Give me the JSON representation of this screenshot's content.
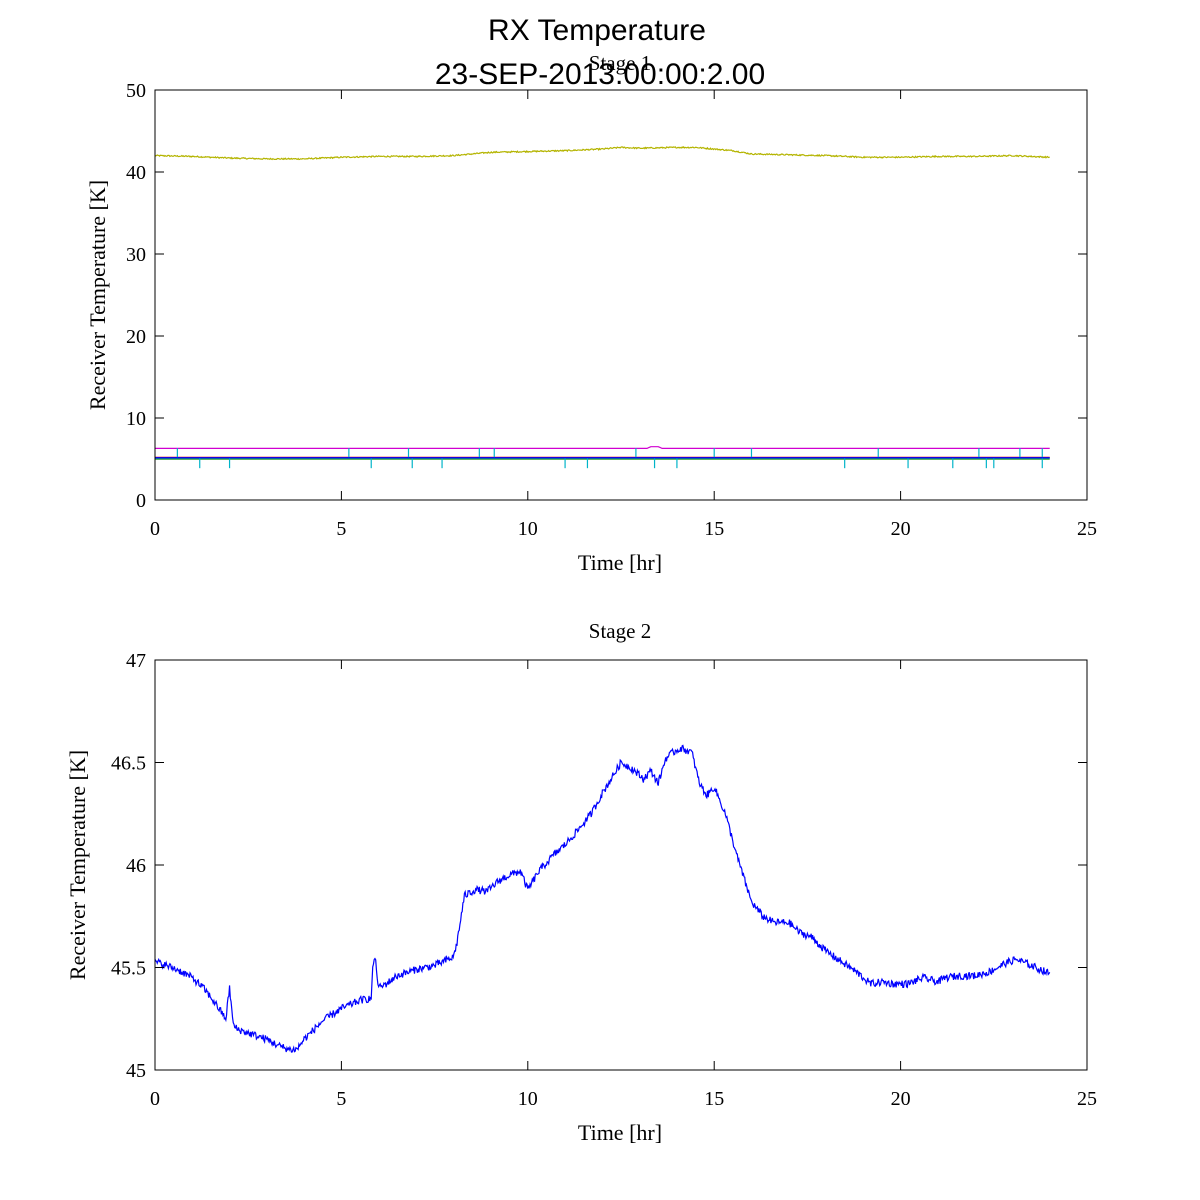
{
  "figure": {
    "title_line1": "RX Temperature",
    "title_line2": "23-SEP-2013.00:00:2.00"
  },
  "chart_data": [
    {
      "type": "line",
      "title": "Stage 1",
      "xlabel": "Time [hr]",
      "ylabel": "Receiver Temperature [K]",
      "xlim": [
        0,
        25
      ],
      "ylim": [
        0,
        50
      ],
      "xticks": [
        0,
        5,
        10,
        15,
        20,
        25
      ],
      "yticks": [
        0,
        10,
        20,
        30,
        40,
        50
      ],
      "series": [
        {
          "name": "yellow",
          "color": "#b4b400",
          "x": [
            0,
            1,
            2,
            3,
            4,
            5,
            6,
            7,
            8,
            9,
            10,
            11,
            12,
            12.5,
            13,
            14,
            14.5,
            15,
            15.5,
            16,
            17,
            18,
            19,
            20,
            21,
            22,
            23,
            24
          ],
          "y": [
            42.0,
            41.9,
            41.7,
            41.6,
            41.6,
            41.8,
            41.9,
            41.9,
            42.0,
            42.4,
            42.5,
            42.6,
            42.8,
            43.0,
            42.9,
            43.0,
            43.0,
            42.8,
            42.6,
            42.2,
            42.1,
            42.0,
            41.8,
            41.8,
            41.9,
            41.9,
            42.0,
            41.8
          ]
        },
        {
          "name": "magenta",
          "color": "#d000d0",
          "x": [
            0,
            13.2,
            13.3,
            13.5,
            13.6,
            24
          ],
          "y": [
            6.3,
            6.3,
            6.5,
            6.5,
            6.3,
            6.3
          ]
        },
        {
          "name": "red",
          "color": "#e00000",
          "x": [
            0,
            24
          ],
          "y": [
            5.2,
            5.2
          ]
        },
        {
          "name": "green",
          "color": "#008000",
          "x": [
            0,
            24
          ],
          "y": [
            5.0,
            5.0
          ]
        },
        {
          "name": "cyan",
          "color": "#00b4c8",
          "x": [
            0,
            24
          ],
          "y": [
            5.1,
            5.1
          ],
          "spikes_down": [
            1.2,
            2.0,
            5.8,
            6.9,
            7.7,
            11.0,
            11.6,
            13.4,
            14.0,
            18.5,
            20.2,
            21.4,
            22.3,
            22.5,
            23.8
          ],
          "spikes_up": [
            0.6,
            5.2,
            6.8,
            8.7,
            9.1,
            12.9,
            15.0,
            16.0,
            19.4,
            22.1,
            23.2,
            23.8
          ]
        },
        {
          "name": "blue",
          "color": "#0000ff",
          "x": [
            0,
            24
          ],
          "y": [
            5.15,
            5.15
          ]
        }
      ]
    },
    {
      "type": "line",
      "title": "Stage 2",
      "xlabel": "Time [hr]",
      "ylabel": "Receiver Temperature [K]",
      "xlim": [
        0,
        25
      ],
      "ylim": [
        45,
        47
      ],
      "xticks": [
        0,
        5,
        10,
        15,
        20,
        25
      ],
      "yticks": [
        45,
        45.5,
        46,
        46.5,
        47
      ],
      "ytick_labels": [
        "45",
        "45.5",
        "46",
        "46.5",
        "47"
      ],
      "series": [
        {
          "name": "blue",
          "color": "#0000ff",
          "x": [
            0,
            0.3,
            0.6,
            1.0,
            1.3,
            1.6,
            1.9,
            2.0,
            2.1,
            2.2,
            2.5,
            3.0,
            3.3,
            3.6,
            3.8,
            4.0,
            4.5,
            5.0,
            5.5,
            5.8,
            5.85,
            5.9,
            6.0,
            6.2,
            6.5,
            7.0,
            7.5,
            8.0,
            8.1,
            8.3,
            8.6,
            8.9,
            9.2,
            9.5,
            9.8,
            10.0,
            10.3,
            10.7,
            11.0,
            11.3,
            11.7,
            12.0,
            12.3,
            12.5,
            12.8,
            13.1,
            13.3,
            13.5,
            13.7,
            13.9,
            14.1,
            14.4,
            14.6,
            14.8,
            15.0,
            15.3,
            15.6,
            16.0,
            16.3,
            16.6,
            17.0,
            17.3,
            17.6,
            18.0,
            18.4,
            18.8,
            19.0,
            19.2,
            19.5,
            19.8,
            20.2,
            20.6,
            21.0,
            21.2,
            21.6,
            22.0,
            22.4,
            22.8,
            23.1,
            23.5,
            24.0
          ],
          "y": [
            45.53,
            45.51,
            45.49,
            45.45,
            45.4,
            45.33,
            45.25,
            45.4,
            45.22,
            45.2,
            45.18,
            45.15,
            45.12,
            45.1,
            45.1,
            45.15,
            45.24,
            45.3,
            45.34,
            45.35,
            45.52,
            45.55,
            45.4,
            45.42,
            45.46,
            45.49,
            45.51,
            45.55,
            45.62,
            45.85,
            45.88,
            45.87,
            45.92,
            45.95,
            45.97,
            45.88,
            45.97,
            46.05,
            46.1,
            46.16,
            46.25,
            46.35,
            46.44,
            46.5,
            46.47,
            46.42,
            46.46,
            46.4,
            46.52,
            46.55,
            46.57,
            46.55,
            46.4,
            46.34,
            46.38,
            46.25,
            46.05,
            45.82,
            45.75,
            45.72,
            45.72,
            45.67,
            45.65,
            45.58,
            45.53,
            45.48,
            45.45,
            45.42,
            45.43,
            45.42,
            45.42,
            45.45,
            45.43,
            45.45,
            45.46,
            45.46,
            45.48,
            45.52,
            45.54,
            45.51,
            45.47
          ]
        }
      ]
    }
  ]
}
